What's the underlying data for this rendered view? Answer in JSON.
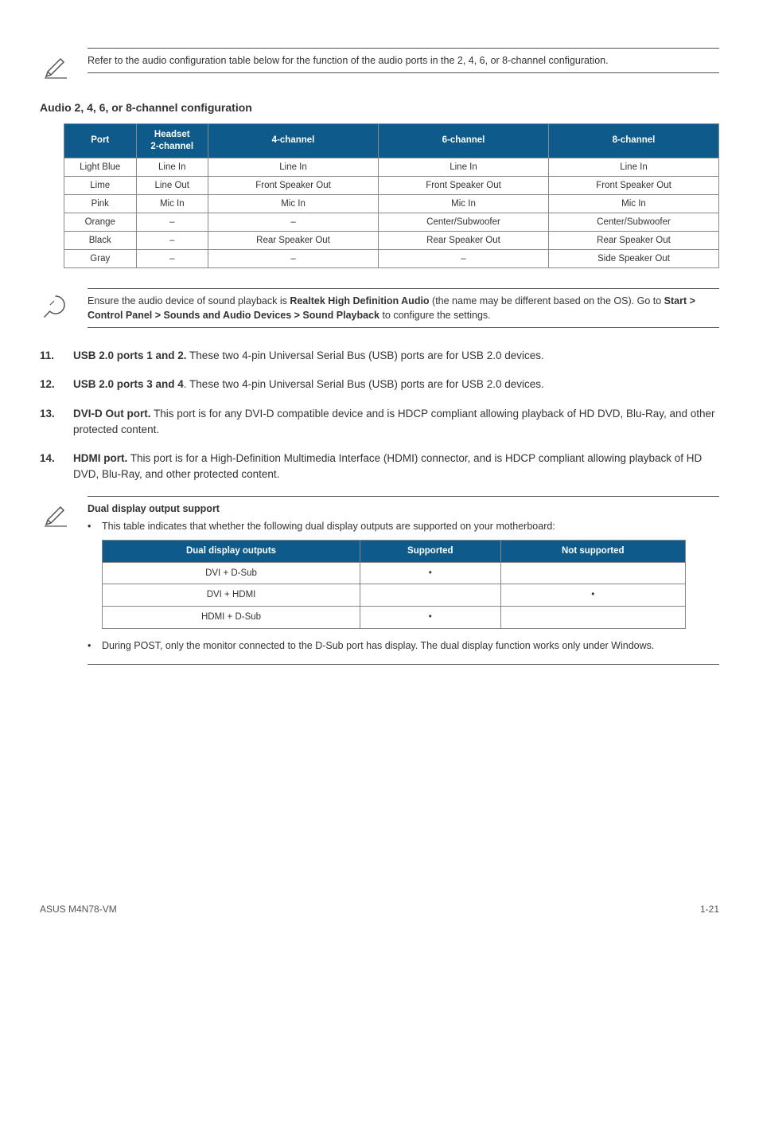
{
  "note1": "Refer to the audio configuration table below for the function of the audio ports in the 2, 4, 6, or 8-channel configuration.",
  "audio_section_title": "Audio 2, 4, 6, or 8-channel configuration",
  "audio_table": {
    "header_bg": "#0e5a8a",
    "header_color": "#ffffff",
    "columns": [
      "Port",
      "Headset\n2-channel",
      "4-channel",
      "6-channel",
      "8-channel"
    ],
    "rows": [
      [
        "Light Blue",
        "Line In",
        "Line In",
        "Line In",
        "Line In"
      ],
      [
        "Lime",
        "Line Out",
        "Front Speaker Out",
        "Front Speaker Out",
        "Front Speaker Out"
      ],
      [
        "Pink",
        "Mic In",
        "Mic In",
        "Mic In",
        "Mic In"
      ],
      [
        "Orange",
        "–",
        "–",
        "Center/Subwoofer",
        "Center/Subwoofer"
      ],
      [
        "Black",
        "–",
        "Rear Speaker Out",
        "Rear Speaker Out",
        "Rear Speaker Out"
      ],
      [
        "Gray",
        "–",
        "–",
        "–",
        "Side Speaker Out"
      ]
    ]
  },
  "note2": {
    "pre": "Ensure the audio device of sound playback is ",
    "b1": "Realtek High Definition Audio",
    "mid1": " (the name may be different based on the OS). Go to ",
    "b2": "Start > Control Panel > Sounds and Audio Devices > Sound Playback",
    "mid2": " to configure the settings."
  },
  "items": {
    "11": {
      "num": "11.",
      "lead": "USB 2.0 ports 1 and 2.",
      "rest": " These two 4-pin Universal Serial Bus (USB) ports are for USB 2.0 devices."
    },
    "12": {
      "num": "12.",
      "lead": "USB 2.0 ports 3 and 4",
      "rest": ". These two 4-pin Universal Serial Bus (USB) ports are for USB 2.0 devices."
    },
    "13": {
      "num": "13.",
      "lead": "DVI-D Out port.",
      "rest": " This port is for any DVI-D compatible device and is HDCP compliant allowing playback of HD DVD, Blu-Ray, and other protected content."
    },
    "14": {
      "num": "14.",
      "lead": "HDMI port.",
      "rest": " This port is for a High-Definition Multimedia Interface (HDMI) connector, and is HDCP compliant allowing playback of HD DVD, Blu-Ray, and other protected content."
    }
  },
  "note3": {
    "title": "Dual display output support",
    "bullet1": "This table indicates that whether the following dual display outputs are supported on your motherboard:",
    "table": {
      "columns": [
        "Dual display outputs",
        "Supported",
        "Not supported"
      ],
      "rows": [
        [
          "DVI + D-Sub",
          "•",
          ""
        ],
        [
          "DVI + HDMI",
          "",
          "•"
        ],
        [
          "HDMI + D-Sub",
          "•",
          ""
        ]
      ]
    },
    "bullet2": "During POST, only the monitor connected to the D-Sub port has display. The dual display function works only under Windows."
  },
  "footer": {
    "left": "ASUS M4N78-VM",
    "right": "1-21"
  }
}
